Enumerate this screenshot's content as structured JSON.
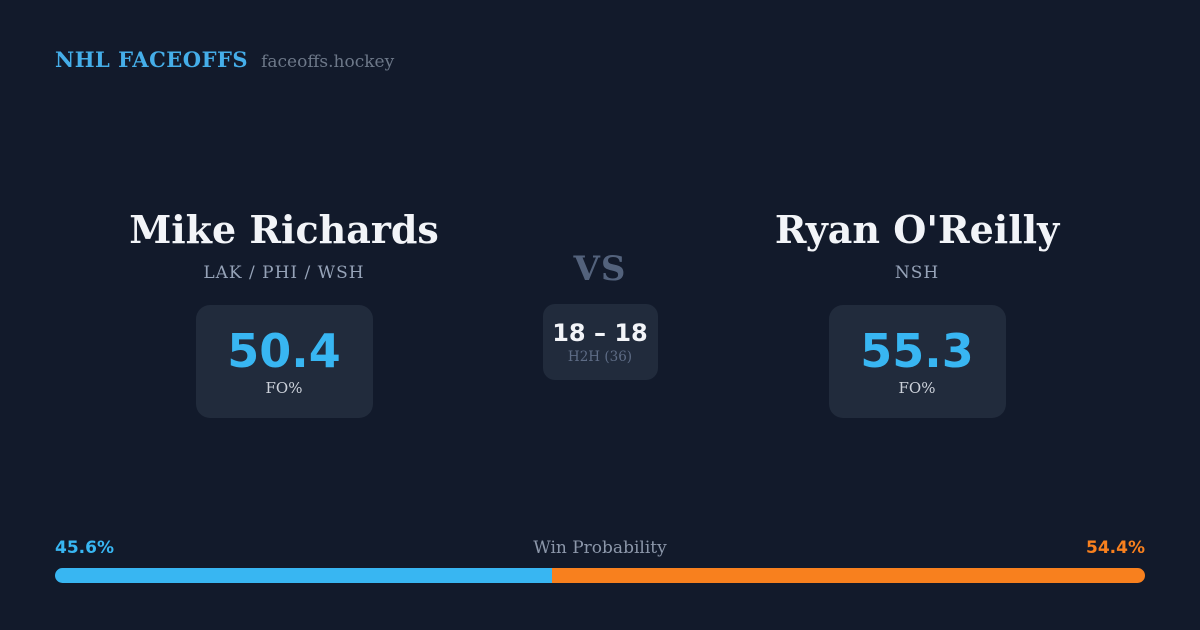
{
  "header": {
    "brand": "NHL FACEOFFS",
    "site": "faceoffs.hockey"
  },
  "players": {
    "left": {
      "name": "Mike Richards",
      "teams": "LAK / PHI / WSH",
      "fo_pct": "50.4",
      "stat_label": "FO%"
    },
    "right": {
      "name": "Ryan O'Reilly",
      "teams": "NSH",
      "fo_pct": "55.3",
      "stat_label": "FO%"
    }
  },
  "matchup": {
    "vs_label": "VS",
    "h2h_score": "18 – 18",
    "h2h_games_label": "H2H (36)"
  },
  "win_probability": {
    "title": "Win Probability",
    "left_label": "45.6%",
    "right_label": "54.4%",
    "left_value": 45.6,
    "right_value": 54.4
  },
  "colors": {
    "background": "#121a2b",
    "card": "#212b3c",
    "accent_blue": "#38b6f2",
    "brand_blue": "#45aee9",
    "accent_orange": "#f8801e",
    "name_white": "#f2f4f8"
  },
  "chart_data": {
    "type": "bar",
    "title": "Win Probability",
    "categories": [
      "Mike Richards",
      "Ryan O'Reilly"
    ],
    "values": [
      45.6,
      54.4
    ],
    "unit": "%",
    "bar_colors": [
      "#38b6f2",
      "#f8801e"
    ],
    "legend_position": "none",
    "related_stats": {
      "faceoff_pct": [
        50.4,
        55.3
      ],
      "head_to_head": {
        "left_wins": 18,
        "right_wins": 18,
        "total_faceoffs": 36
      }
    }
  }
}
